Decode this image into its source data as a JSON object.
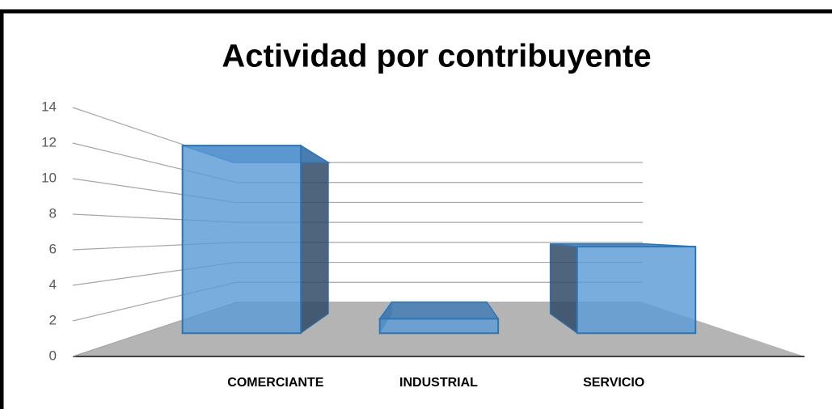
{
  "chart_data": {
    "type": "bar3d",
    "title": "Actividad por contribuyente",
    "categories": [
      "COMERCIANTE",
      "INDUSTRIAL",
      "SERVICIO"
    ],
    "values": [
      13,
      1,
      6
    ],
    "color": "#5b9bd5",
    "ylim": [
      0,
      14
    ],
    "yticks": [
      0,
      2,
      4,
      6,
      8,
      10,
      12,
      14
    ],
    "grid": true
  }
}
